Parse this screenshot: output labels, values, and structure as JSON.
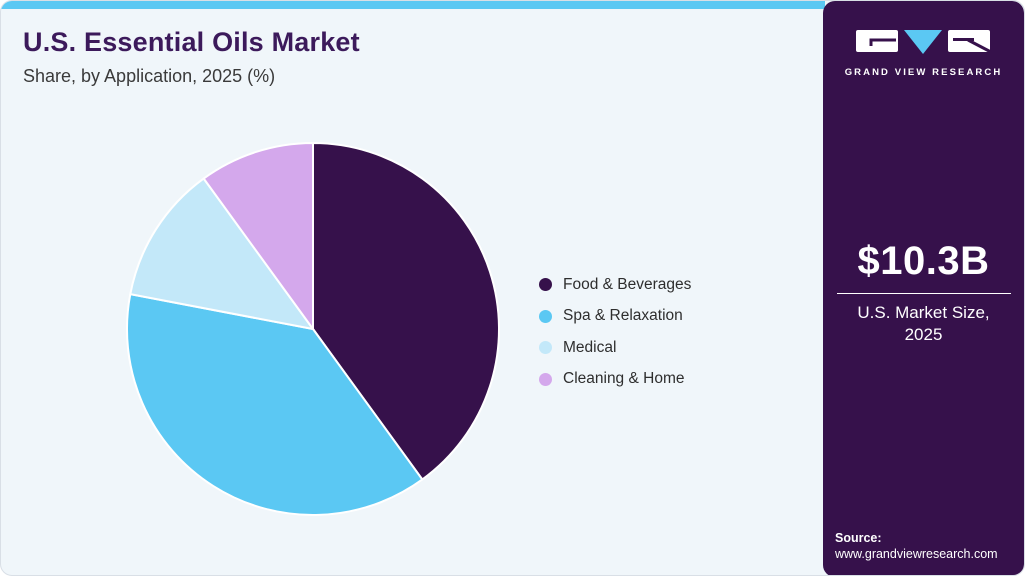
{
  "header": {
    "title": "U.S. Essential Oils Market",
    "subtitle": "Share, by Application, 2025 (%)"
  },
  "chart_data": {
    "type": "pie",
    "title": "U.S. Essential Oils Market Share, by Application, 2025 (%)",
    "start_angle_deg": 0,
    "direction": "clockwise",
    "values_are_percent": true,
    "legend_position": "right",
    "slices": [
      {
        "label": "Food & Beverages",
        "value": 40,
        "color": "#36114B"
      },
      {
        "label": "Spa & Relaxation",
        "value": 38,
        "color": "#5BC8F3"
      },
      {
        "label": "Medical",
        "value": 12,
        "color": "#C3E8F9"
      },
      {
        "label": "Cleaning & Home",
        "value": 10,
        "color": "#D4A8EC"
      }
    ]
  },
  "sidebar": {
    "brand_name": "GRAND VIEW RESEARCH",
    "market_size": "$10.3B",
    "market_size_label": "U.S. Market Size, 2025",
    "source_label": "Source:",
    "source_url": "www.grandviewresearch.com"
  },
  "theme": {
    "top_bar_color": "#5BC8F3",
    "content_background": "#F0F6FA",
    "sidebar_background": "#36114B",
    "title_color": "#3C1A5B",
    "subtitle_color": "#3A3A3A",
    "logo_triangle_color": "#5BC8F3"
  }
}
